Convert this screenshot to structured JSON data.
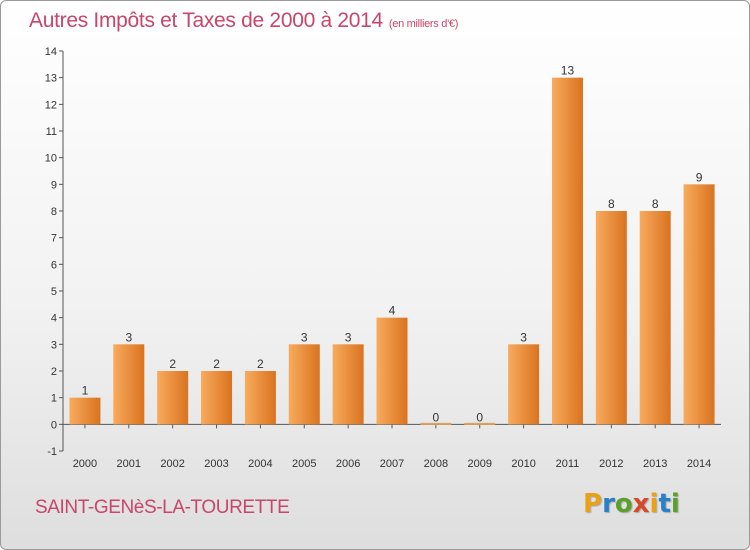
{
  "title": "Autres Impôts et Taxes de 2000 à 2014",
  "subtitle": "(en milliers d'€)",
  "commune": "SAINT-GENèS-LA-TOURETTE",
  "logo": {
    "letters": [
      "P",
      "r",
      "o",
      "x",
      "i",
      "t",
      "i"
    ],
    "colors": [
      "#e8a21a",
      "#2a7fc9",
      "#5aa02c",
      "#d64a2a",
      "#e8a21a",
      "#2a7fc9",
      "#5aa02c"
    ]
  },
  "colors": {
    "title": "#c8466a",
    "bar_light": "#f8ab5e",
    "bar_dark": "#d9731f"
  },
  "chart_data": {
    "type": "bar",
    "title": "Autres Impôts et Taxes de 2000 à 2014",
    "subtitle": "(en milliers d'€)",
    "categories": [
      "2000",
      "2001",
      "2002",
      "2003",
      "2004",
      "2005",
      "2006",
      "2007",
      "2008",
      "2009",
      "2010",
      "2011",
      "2012",
      "2013",
      "2014"
    ],
    "values": [
      1,
      3,
      2,
      2,
      2,
      3,
      3,
      4,
      0,
      0,
      3,
      13,
      8,
      8,
      9
    ],
    "data_labels": [
      "1",
      "3",
      "2",
      "2",
      "2",
      "3",
      "3",
      "4",
      "0",
      "0",
      "3",
      "13",
      "8",
      "8",
      "9"
    ],
    "y_ticks": [
      "-1",
      "0",
      "1",
      "2",
      "3",
      "4",
      "5",
      "6",
      "7",
      "8",
      "9",
      "10",
      "11",
      "12",
      "13",
      "14"
    ],
    "ylim": [
      -1,
      14
    ],
    "grid": false,
    "legend": "none"
  }
}
